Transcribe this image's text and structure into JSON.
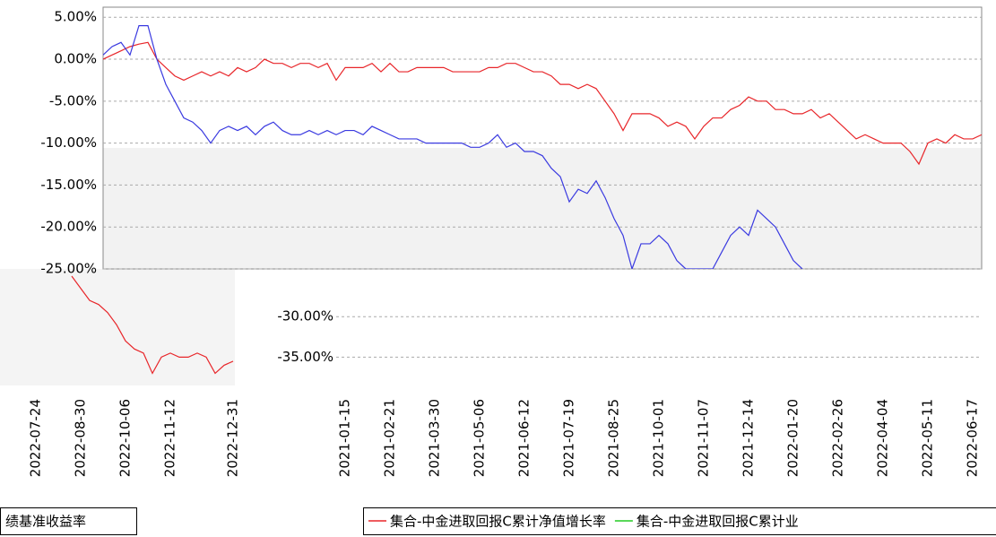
{
  "chart_data": [
    {
      "type": "line",
      "categories": [
        null,
        null,
        null,
        null,
        null,
        null,
        null,
        null,
        null,
        null,
        null,
        null,
        null,
        null,
        null,
        null,
        null,
        null,
        null,
        null,
        null,
        null,
        null,
        null,
        null,
        null,
        null,
        "2021-01-15",
        null,
        null,
        null,
        null,
        "2021-02-21",
        null,
        null,
        null,
        null,
        "2021-03-30",
        null,
        null,
        null,
        null,
        "2021-05-06",
        null,
        null,
        null,
        null,
        "2021-06-12",
        null,
        null,
        null,
        null,
        "2021-07-19",
        null,
        null,
        null,
        null,
        "2021-08-25",
        null,
        null,
        null,
        null,
        "2021-10-01",
        null,
        null,
        null,
        null,
        "2021-11-07",
        null,
        null,
        null,
        null,
        "2021-12-14",
        null,
        null,
        null,
        null,
        "2022-01-20",
        null,
        null,
        null,
        null,
        "2022-02-26",
        null,
        null,
        null,
        null,
        "2022-04-04",
        null,
        null,
        null,
        null,
        "2022-05-11",
        null,
        null,
        null,
        null,
        "2022-06-17",
        null
      ],
      "series": [
        {
          "color": "#e8262a",
          "values": [
            0,
            0.5,
            1,
            1.5,
            1.8,
            2,
            0,
            -1,
            -2,
            -2.5,
            -2,
            -1.5,
            -2,
            -1.5,
            -2,
            -1,
            -1.5,
            -1,
            0,
            -0.5,
            -0.5,
            -1,
            -0.5,
            -0.5,
            -1,
            -0.5,
            -2.5,
            -1,
            -1,
            -1,
            -0.5,
            -1.5,
            -0.5,
            -1.5,
            -1.5,
            -1,
            -1,
            -1,
            -1,
            -1.5,
            -1.5,
            -1.5,
            -1.5,
            -1,
            -1,
            -0.5,
            -0.5,
            -1,
            -1.5,
            -1.5,
            -2,
            -3,
            -3,
            -3.5,
            -3,
            -3.5,
            -5,
            -6.5,
            -8.5,
            -6.5,
            -6.5,
            -6.5,
            -7,
            -8,
            -7.5,
            -8,
            -9.5,
            -8,
            -7,
            -7,
            -6,
            -5.5,
            -4.5,
            -5,
            -5,
            -6,
            -6,
            -6.5,
            -6.5,
            -6,
            -7,
            -6.5,
            -7.5,
            -8.5,
            -9.5,
            -9,
            -9.5,
            -10,
            -10,
            -10,
            -11,
            -12.5,
            -10,
            -9.5,
            -10,
            -9,
            -9.5,
            -9.5,
            -9
          ]
        },
        {
          "color": "#3a3ae0",
          "values": [
            0.5,
            1.5,
            2,
            0.5,
            4,
            4,
            0,
            -3,
            -5,
            -7,
            -7.5,
            -8.5,
            -10,
            -8.5,
            -8,
            -8.5,
            -8,
            -9,
            -8,
            -7.5,
            -8.5,
            -9,
            -9,
            -8.5,
            -9,
            -8.5,
            -9,
            -8.5,
            -8.5,
            -9,
            -8,
            -8.5,
            -9,
            -9.5,
            -9.5,
            -9.5,
            -10,
            -10,
            -10,
            -10,
            -10,
            -10.5,
            -10.5,
            -10,
            -9,
            -10.5,
            -10,
            -11,
            -11,
            -11.5,
            -13,
            -14,
            -17,
            -15.5,
            -16,
            -14.5,
            -16.5,
            -19,
            -21,
            -25,
            -22,
            -22,
            -21,
            -22,
            -24,
            -25,
            -25,
            -25,
            -25,
            -23,
            -21,
            -20,
            -21,
            -18,
            -19,
            -20,
            -22,
            -24,
            -25,
            null,
            null,
            null,
            null,
            null,
            null,
            null,
            null,
            null,
            null,
            null,
            null,
            null,
            null,
            null,
            null,
            null,
            null,
            null,
            null
          ]
        }
      ],
      "ylim": [
        -25,
        6.2
      ],
      "yticks": [
        {
          "value": 5,
          "label": "5.00%"
        },
        {
          "value": 0,
          "label": "0.00%"
        },
        {
          "value": -5,
          "label": "-5.00%"
        },
        {
          "value": -10,
          "label": "-10.00%"
        },
        {
          "value": -15,
          "label": "-15.00%"
        },
        {
          "value": -20,
          "label": "-20.00%"
        },
        {
          "value": -25,
          "label": "-25.00%"
        }
      ],
      "grid": true,
      "legend": [
        {
          "name": "集合-中金进取回报C累计净值增长率",
          "color": "#e8262a"
        },
        {
          "name": "集合-中金进取回报C累计业",
          "color": "#22cc22"
        }
      ]
    },
    {
      "type": "line",
      "categories": [
        "2022-07-24",
        null,
        null,
        null,
        null,
        "2022-08-30",
        null,
        null,
        null,
        null,
        "2022-10-06",
        null,
        null,
        null,
        null,
        "2022-11-12",
        null,
        null,
        null,
        null,
        null,
        null,
        "2022-12-31"
      ],
      "series": [
        {
          "color": "#e8262a",
          "values": [
            null,
            null,
            null,
            null,
            -25,
            -26.5,
            -28,
            -28.5,
            -29.5,
            -31,
            -33,
            -34,
            -34.5,
            -37,
            -35,
            -34.5,
            -35,
            -35,
            -34.5,
            -35,
            -37,
            -36,
            -35.5
          ]
        }
      ],
      "ylim": [
        -38.5,
        -24
      ],
      "yticks": [
        {
          "value": -30,
          "label": "-30.00%"
        },
        {
          "value": -35,
          "label": "-35.00%"
        }
      ],
      "grid": true,
      "legend": [
        {
          "name": "绩基准收益率",
          "color": "#3a3ae0"
        }
      ]
    }
  ]
}
